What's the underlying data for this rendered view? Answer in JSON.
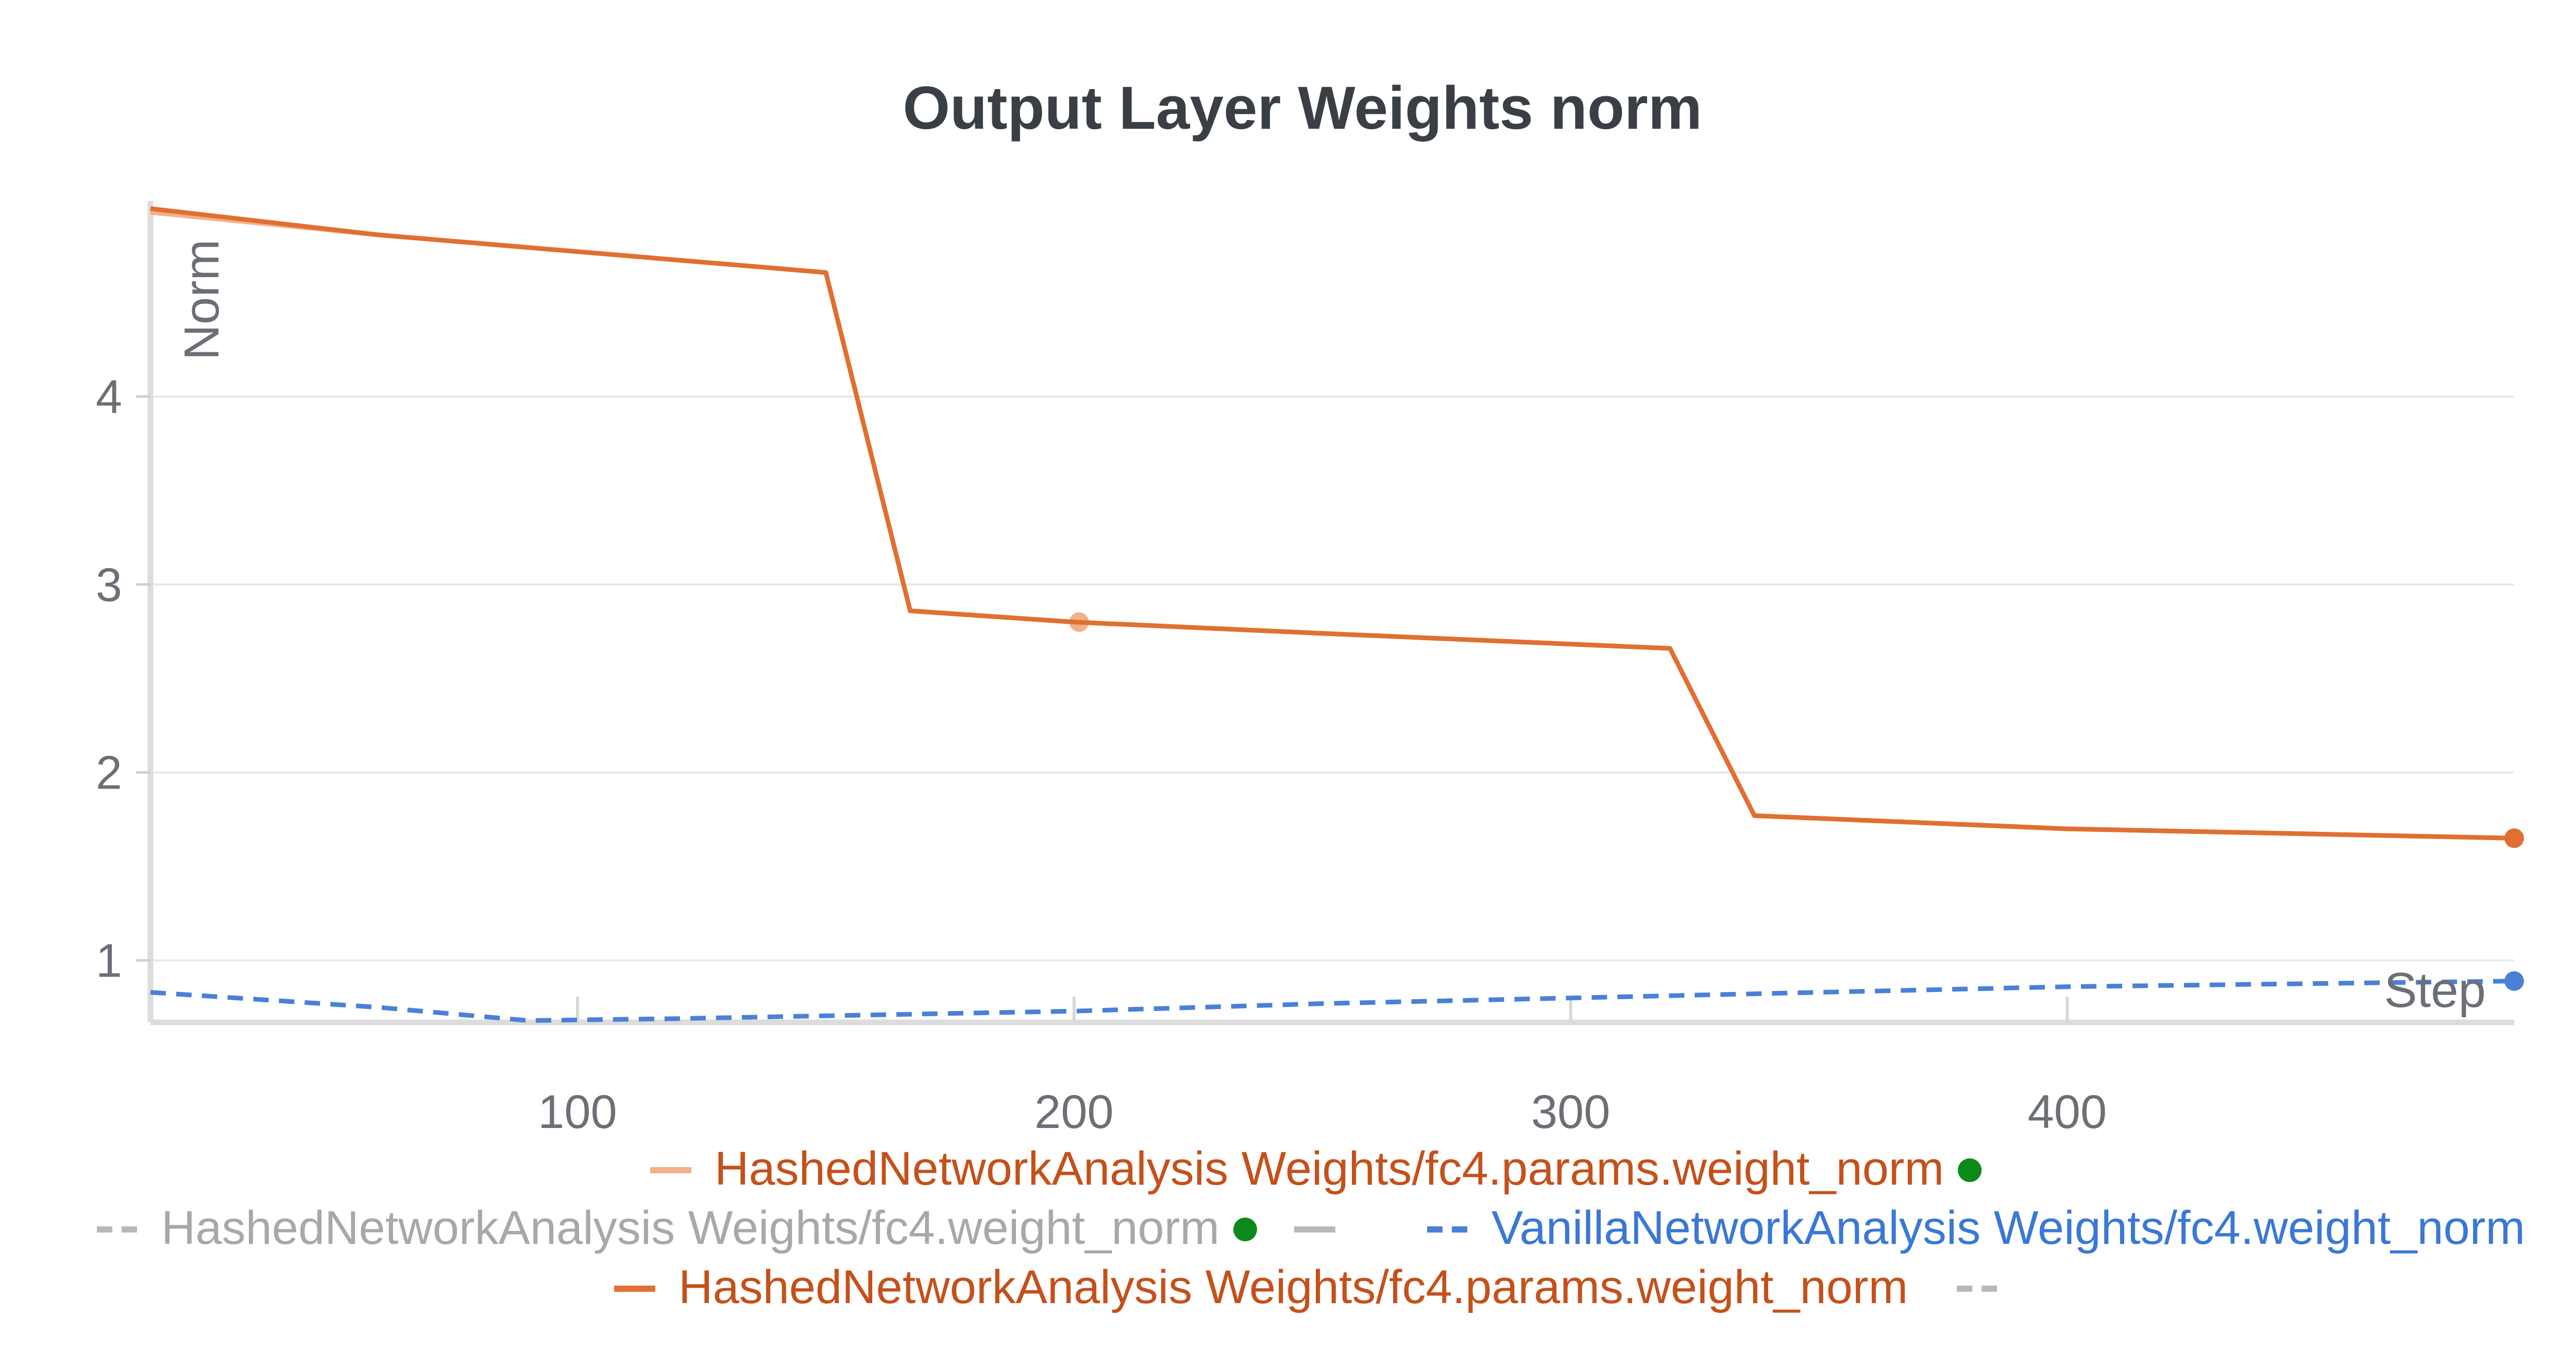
{
  "chart_data": {
    "type": "line",
    "title": "Output Layer Weights norm",
    "xlabel": "Step",
    "ylabel": "Norm",
    "xlim": [
      14,
      490
    ],
    "ylim": [
      0.67,
      5
    ],
    "xticks": [
      100,
      200,
      300,
      400
    ],
    "yticks": [
      1,
      2,
      3,
      4
    ],
    "grid": true,
    "legend_position": "bottom",
    "series": [
      {
        "name": "HashedNetworkAnalysis Weights/fc4.params.weight_norm",
        "color": "#f2b08a",
        "style": "solid",
        "status_dot": "#0b8a1a",
        "points": [
          [
            14,
            4.98
          ],
          [
            60,
            4.86
          ],
          [
            150,
            4.66
          ],
          [
            167,
            2.86
          ],
          [
            200,
            2.8
          ],
          [
            250,
            2.74
          ],
          [
            320,
            2.66
          ],
          [
            337,
            1.77
          ],
          [
            400,
            1.7
          ],
          [
            490,
            1.65
          ]
        ],
        "highlight": [
          [
            201,
            2.8
          ]
        ]
      },
      {
        "name": "HashedNetworkAnalysis Weights/fc4.weight_norm",
        "color": "#b8b8b8",
        "style": "dashed",
        "status_dot": "#0b8a1a",
        "points": []
      },
      {
        "name": "VanillaNetworkAnalysis Weights/fc4.weight_norm",
        "color": "#4a80d8",
        "style": "dashed",
        "points": [
          [
            14,
            0.83
          ],
          [
            60,
            0.75
          ],
          [
            90,
            0.68
          ],
          [
            120,
            0.69
          ],
          [
            160,
            0.71
          ],
          [
            200,
            0.73
          ],
          [
            250,
            0.77
          ],
          [
            300,
            0.8
          ],
          [
            350,
            0.83
          ],
          [
            400,
            0.86
          ],
          [
            490,
            0.89
          ]
        ],
        "end_dot": true
      },
      {
        "name": "HashedNetworkAnalysis Weights/fc4.params.weight_norm",
        "color": "#e07032",
        "style": "solid",
        "points": [
          [
            14,
            5.0
          ],
          [
            60,
            4.86
          ],
          [
            150,
            4.66
          ],
          [
            167,
            2.86
          ],
          [
            200,
            2.8
          ],
          [
            250,
            2.74
          ],
          [
            320,
            2.66
          ],
          [
            337,
            1.77
          ],
          [
            400,
            1.7
          ],
          [
            490,
            1.65
          ]
        ],
        "end_dot": true
      }
    ]
  }
}
